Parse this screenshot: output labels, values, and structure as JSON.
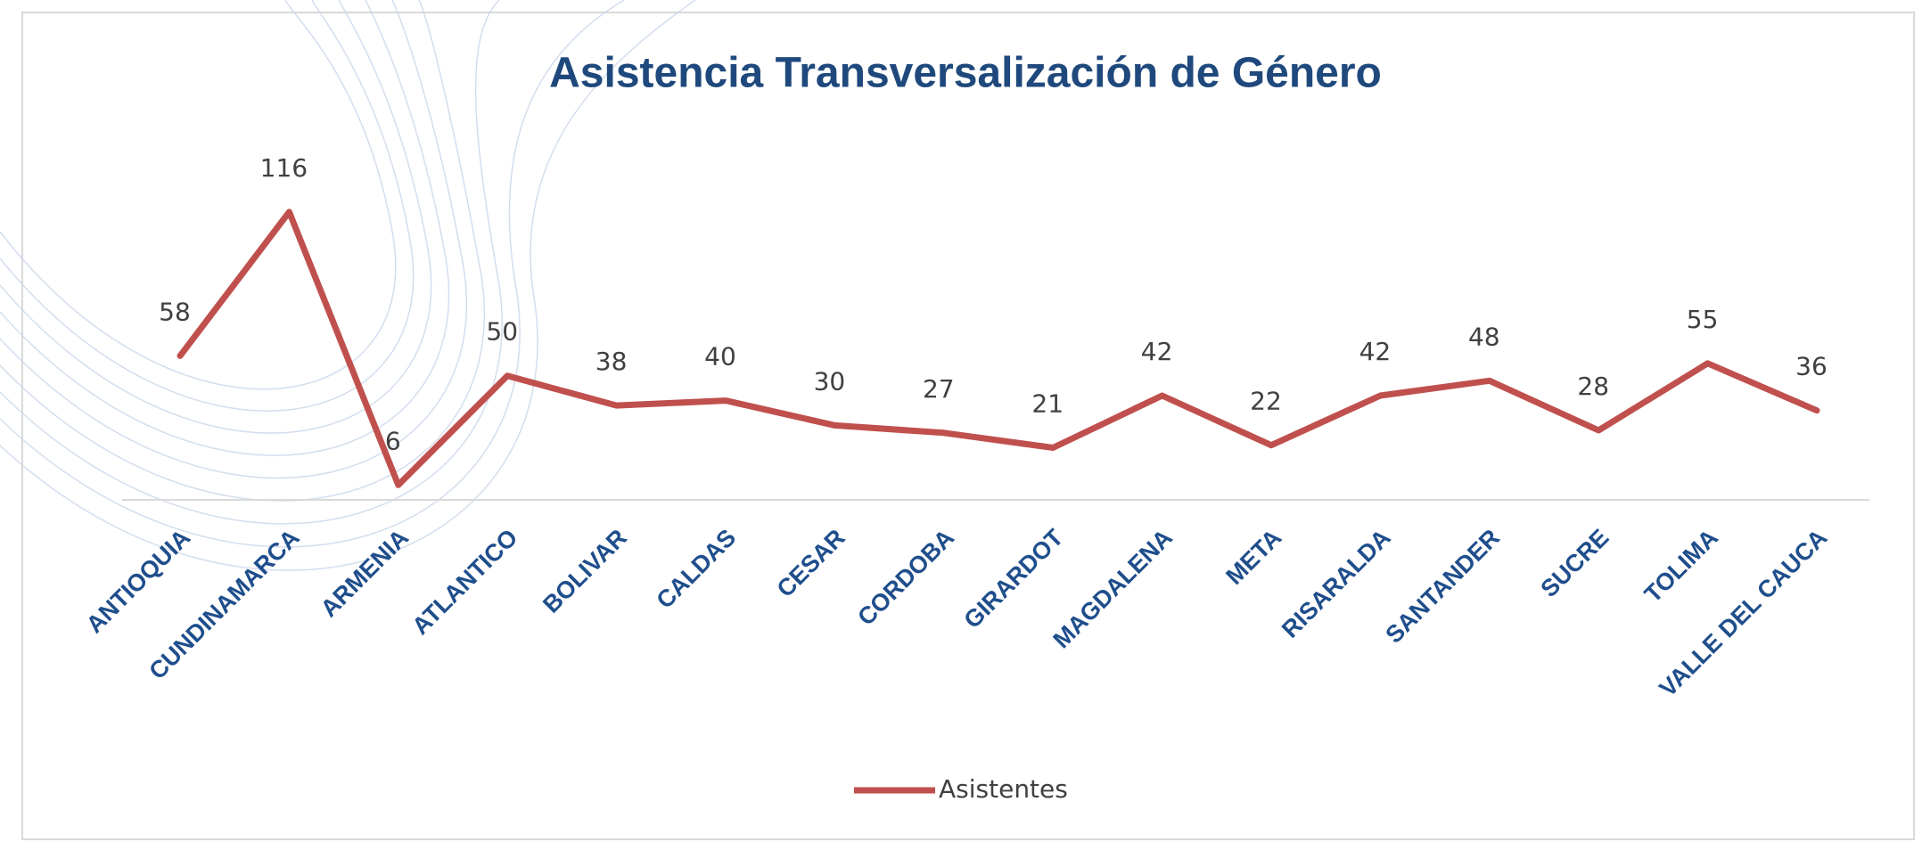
{
  "chart_data": {
    "type": "line",
    "title": "Asistencia Transversalización de Género",
    "categories": [
      "ANTIOQUIA",
      "CUNDINAMARCA",
      "ARMENIA",
      "ATLANTICO",
      "BOLIVAR",
      "CALDAS",
      "CESAR",
      "CORDOBA",
      "GIRARDOT",
      "MAGDALENA",
      "META",
      "RISARALDA",
      "SANTANDER",
      "SUCRE",
      "TOLIMA",
      "VALLE DEL CAUCA"
    ],
    "series": [
      {
        "name": "Asistentes",
        "color": "#c0504d",
        "values": [
          58,
          116,
          6,
          50,
          38,
          40,
          30,
          27,
          21,
          42,
          22,
          42,
          48,
          28,
          55,
          36
        ]
      }
    ],
    "ylim": [
      0,
      140
    ],
    "legend": "bottom"
  }
}
